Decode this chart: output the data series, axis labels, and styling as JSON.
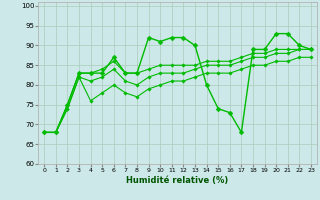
{
  "xlabel": "Humidité relative (%)",
  "bg_color": "#cce8e8",
  "grid_color": "#aaccbb",
  "line_color": "#00bb00",
  "xlim": [
    -0.5,
    23.5
  ],
  "ylim": [
    60,
    101
  ],
  "yticks": [
    60,
    65,
    70,
    75,
    80,
    85,
    90,
    95,
    100
  ],
  "xticks": [
    0,
    1,
    2,
    3,
    4,
    5,
    6,
    7,
    8,
    9,
    10,
    11,
    12,
    13,
    14,
    15,
    16,
    17,
    18,
    19,
    20,
    21,
    22,
    23
  ],
  "series": [
    {
      "x": [
        0,
        1,
        2,
        3,
        4,
        5,
        6,
        7,
        8,
        9,
        10,
        11,
        12,
        13,
        14,
        15,
        16,
        17,
        18,
        19,
        20,
        21,
        22,
        23
      ],
      "y": [
        68,
        68,
        75,
        83,
        83,
        83,
        87,
        83,
        83,
        92,
        91,
        92,
        92,
        90,
        80,
        74,
        73,
        68,
        89,
        89,
        93,
        93,
        90,
        89
      ]
    },
    {
      "x": [
        0,
        1,
        2,
        3,
        4,
        5,
        6,
        7,
        8,
        9,
        10,
        11,
        12,
        13,
        14,
        15,
        16,
        17,
        18,
        19,
        20,
        21,
        22,
        23
      ],
      "y": [
        68,
        68,
        75,
        83,
        83,
        84,
        86,
        83,
        83,
        84,
        85,
        85,
        85,
        85,
        86,
        86,
        86,
        87,
        88,
        88,
        89,
        89,
        89,
        89
      ]
    },
    {
      "x": [
        0,
        1,
        2,
        3,
        4,
        5,
        6,
        7,
        8,
        9,
        10,
        11,
        12,
        13,
        14,
        15,
        16,
        17,
        18,
        19,
        20,
        21,
        22,
        23
      ],
      "y": [
        68,
        68,
        74,
        82,
        81,
        82,
        84,
        81,
        80,
        82,
        83,
        83,
        83,
        84,
        85,
        85,
        85,
        86,
        87,
        87,
        88,
        88,
        89,
        89
      ]
    },
    {
      "x": [
        0,
        1,
        2,
        3,
        4,
        5,
        6,
        7,
        8,
        9,
        10,
        11,
        12,
        13,
        14,
        15,
        16,
        17,
        18,
        19,
        20,
        21,
        22,
        23
      ],
      "y": [
        68,
        68,
        74,
        82,
        76,
        78,
        80,
        78,
        77,
        79,
        80,
        81,
        81,
        82,
        83,
        83,
        83,
        84,
        85,
        85,
        86,
        86,
        87,
        87
      ]
    }
  ]
}
